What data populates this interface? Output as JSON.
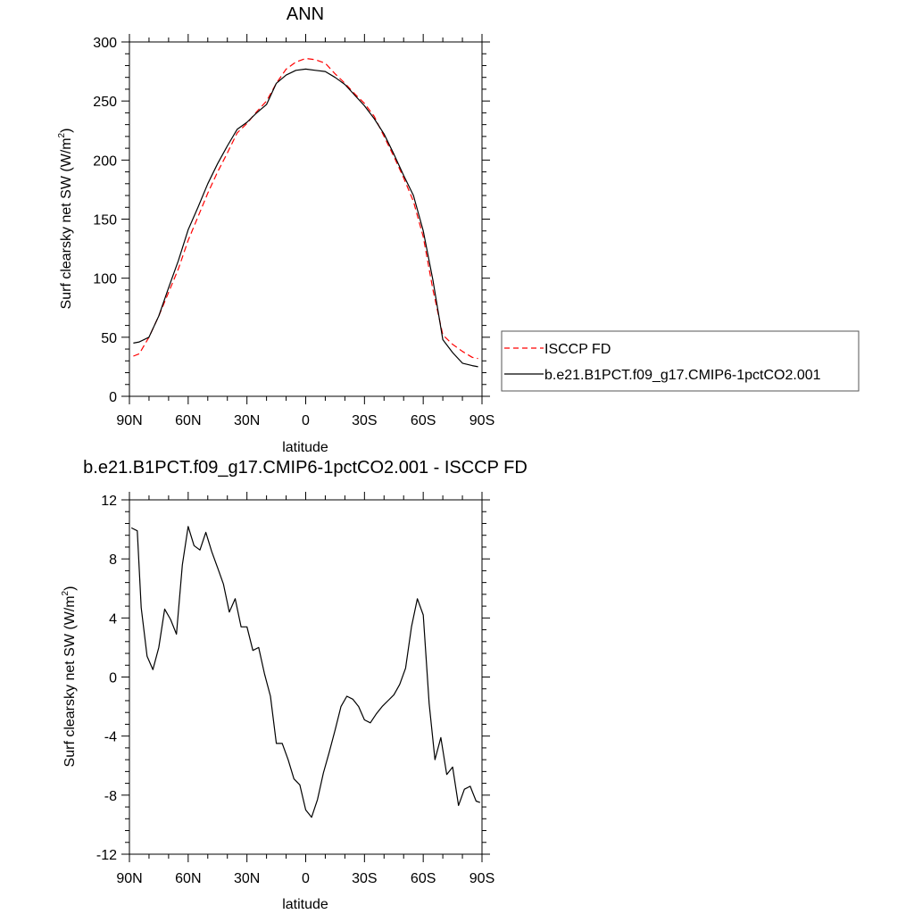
{
  "chart_data": [
    {
      "type": "line",
      "title": "ANN",
      "xlabel": "latitude",
      "ylabel": "Surf clearsky net SW (W/m",
      "ylabel_sup": "2",
      "ylabel_close": ")",
      "xlim": [
        90,
        -90
      ],
      "ylim": [
        0,
        300
      ],
      "x_ticks": [
        90,
        60,
        30,
        0,
        -30,
        -60,
        -90
      ],
      "x_tick_labels": [
        "90N",
        "60N",
        "30N",
        "0",
        "30S",
        "60S",
        "90S"
      ],
      "y_ticks": [
        0,
        50,
        100,
        150,
        200,
        250,
        300
      ],
      "y_tick_labels": [
        "0",
        "50",
        "100",
        "150",
        "200",
        "250",
        "300"
      ],
      "legend_position": "right",
      "series": [
        {
          "name": "ISCCP FD",
          "color": "#ff0000",
          "dash": "dashed",
          "x": [
            88,
            85,
            80,
            75,
            70,
            65,
            60,
            55,
            50,
            45,
            40,
            35,
            30,
            25,
            20,
            15,
            10,
            5,
            0,
            -5,
            -10,
            -15,
            -20,
            -25,
            -30,
            -35,
            -40,
            -45,
            -50,
            -55,
            -60,
            -65,
            -70,
            -75,
            -80,
            -85,
            -88
          ],
          "y": [
            34,
            36,
            50,
            68,
            88,
            108,
            132,
            152,
            172,
            190,
            206,
            223,
            231,
            241,
            250,
            265,
            277,
            283,
            286,
            285,
            282,
            273,
            265,
            256,
            248,
            237,
            220,
            203,
            185,
            165,
            135,
            90,
            52,
            44,
            38,
            33,
            32
          ]
        },
        {
          "name": "b.e21.B1PCT.f09_g17.CMIP6-1pctCO2.001",
          "color": "#000000",
          "dash": "solid",
          "x": [
            88,
            85,
            80,
            75,
            70,
            65,
            60,
            55,
            50,
            45,
            40,
            35,
            30,
            25,
            20,
            15,
            10,
            5,
            0,
            -5,
            -10,
            -15,
            -20,
            -25,
            -30,
            -35,
            -40,
            -45,
            -50,
            -55,
            -60,
            -65,
            -70,
            -75,
            -80,
            -85,
            -88
          ],
          "y": [
            45,
            46,
            50,
            68,
            92,
            115,
            141,
            160,
            180,
            197,
            212,
            226,
            232,
            240,
            247,
            265,
            272,
            276,
            277,
            276,
            275,
            270,
            264,
            255,
            246,
            235,
            222,
            205,
            187,
            170,
            140,
            98,
            48,
            37,
            28,
            26,
            25
          ]
        }
      ]
    },
    {
      "type": "line",
      "title": "b.e21.B1PCT.f09_g17.CMIP6-1pctCO2.001 - ISCCP FD",
      "xlabel": "latitude",
      "ylabel": "Surf clearsky net SW (W/m",
      "ylabel_sup": "2",
      "ylabel_close": ")",
      "xlim": [
        90,
        -90
      ],
      "ylim": [
        -12,
        12
      ],
      "x_ticks": [
        90,
        60,
        30,
        0,
        -30,
        -60,
        -90
      ],
      "x_tick_labels": [
        "90N",
        "60N",
        "30N",
        "0",
        "30S",
        "60S",
        "90S"
      ],
      "y_ticks": [
        -12,
        -8,
        -4,
        0,
        4,
        8,
        12
      ],
      "y_tick_labels": [
        "-12",
        "-8",
        "-4",
        "0",
        "4",
        "8",
        "12"
      ],
      "series": [
        {
          "color": "#000000",
          "dash": "solid",
          "x": [
            89,
            86,
            84,
            81,
            78,
            75,
            72,
            69,
            66,
            63,
            60,
            57,
            54,
            51,
            48,
            45,
            42,
            39,
            36,
            33,
            30,
            27,
            24,
            21,
            18,
            15,
            12,
            9,
            6,
            3,
            0,
            -3,
            -6,
            -9,
            -12,
            -15,
            -18,
            -21,
            -24,
            -27,
            -30,
            -33,
            -36,
            -39,
            -42,
            -45,
            -48,
            -51,
            -54,
            -57,
            -60,
            -63,
            -66,
            -69,
            -72,
            -75,
            -78,
            -81,
            -84,
            -87,
            -89
          ],
          "y": [
            10.1,
            9.9,
            4.7,
            1.4,
            0.5,
            2.0,
            4.6,
            3.9,
            2.9,
            7.6,
            10.2,
            8.9,
            8.6,
            9.8,
            8.5,
            7.4,
            6.3,
            4.4,
            5.3,
            3.4,
            3.4,
            1.8,
            2.0,
            0.2,
            -1.3,
            -4.5,
            -4.5,
            -5.6,
            -6.9,
            -7.3,
            -9.0,
            -9.5,
            -8.3,
            -6.5,
            -5.1,
            -3.6,
            -2.0,
            -1.3,
            -1.5,
            -2.0,
            -2.9,
            -3.1,
            -2.5,
            -2.0,
            -1.6,
            -1.2,
            -0.5,
            0.6,
            3.4,
            5.3,
            4.2,
            -1.8,
            -5.6,
            -4.1,
            -6.6,
            -6.1,
            -8.7,
            -7.6,
            -7.4,
            -8.4,
            -8.5
          ]
        }
      ]
    }
  ]
}
